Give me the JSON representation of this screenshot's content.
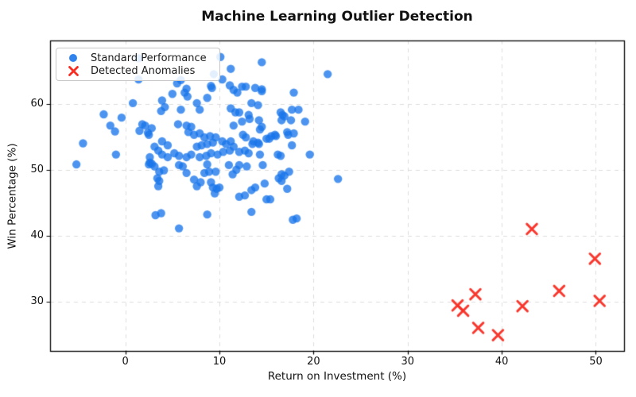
{
  "chart_data": {
    "type": "scatter",
    "title": "Machine Learning Outlier Detection",
    "xlabel": "Return on Investment (%)",
    "ylabel": "Win Percentage (%)",
    "xlim": [
      -8,
      53
    ],
    "ylim": [
      22.5,
      69.6
    ],
    "xticks": [
      0,
      10,
      20,
      30,
      40,
      50
    ],
    "yticks": [
      30,
      40,
      50,
      60
    ],
    "grid": true,
    "grid_color": "#dcdcdc",
    "spine_color": "#000000",
    "legend_position": "upper-left",
    "series": [
      {
        "name": "Standard Performance",
        "marker": "circle",
        "color": "#1976eb",
        "alpha": 0.78,
        "points": [
          [
            -5.2,
            50.8
          ],
          [
            -4.5,
            54
          ],
          [
            -2.3,
            58.4
          ],
          [
            -1.6,
            56.7
          ],
          [
            -1.1,
            55.8
          ],
          [
            -1,
            52.3
          ],
          [
            -0.4,
            57.9
          ],
          [
            0.8,
            60.1
          ],
          [
            1.4,
            66.9
          ],
          [
            1.4,
            63.7
          ],
          [
            5.9,
            63.6
          ],
          [
            9.4,
            64.5
          ],
          [
            6.5,
            62.3
          ],
          [
            10.1,
            67.1
          ],
          [
            11.2,
            65.3
          ],
          [
            14.5,
            66.3
          ],
          [
            21.5,
            64.5
          ],
          [
            5.5,
            63.1
          ],
          [
            9.1,
            62.7
          ],
          [
            11.1,
            62.8
          ],
          [
            12.4,
            62.6
          ],
          [
            12.8,
            62.6
          ],
          [
            13.8,
            62.4
          ],
          [
            14.5,
            62.2
          ],
          [
            9.2,
            62.4
          ],
          [
            10.3,
            63.7
          ],
          [
            14.5,
            61.9
          ],
          [
            5,
            61.5
          ],
          [
            6.3,
            61.7
          ],
          [
            6.6,
            61.1
          ],
          [
            8.7,
            60.9
          ],
          [
            11.5,
            62.1
          ],
          [
            11.9,
            61.7
          ],
          [
            17.9,
            61.7
          ],
          [
            3.9,
            60.5
          ],
          [
            7.6,
            60.1
          ],
          [
            13.4,
            60.1
          ],
          [
            14.1,
            59.8
          ],
          [
            4.2,
            59.5
          ],
          [
            3.8,
            58.9
          ],
          [
            5.9,
            59.1
          ],
          [
            7.9,
            59.1
          ],
          [
            11.2,
            59.3
          ],
          [
            11.7,
            58.7
          ],
          [
            12.1,
            58.7
          ],
          [
            16.5,
            58.7
          ],
          [
            16.7,
            58.3
          ],
          [
            17.7,
            59.1
          ],
          [
            18.4,
            59.1
          ],
          [
            13.1,
            58.3
          ],
          [
            13.2,
            57.7
          ],
          [
            12.4,
            57.3
          ],
          [
            11.5,
            56.7
          ],
          [
            14.2,
            57.5
          ],
          [
            14.5,
            56.5
          ],
          [
            16.9,
            58.1
          ],
          [
            16.6,
            57.5
          ],
          [
            17.6,
            57.5
          ],
          [
            19.1,
            57.3
          ],
          [
            1.8,
            56.9
          ],
          [
            2.1,
            56.7
          ],
          [
            2.8,
            56.3
          ],
          [
            1.5,
            55.9
          ],
          [
            2.4,
            55.6
          ],
          [
            2.5,
            55.3
          ],
          [
            5.6,
            56.9
          ],
          [
            6.5,
            56.7
          ],
          [
            7,
            56.5
          ],
          [
            6.7,
            55.7
          ],
          [
            7.3,
            55.3
          ],
          [
            7.9,
            55.5
          ],
          [
            8.4,
            54.9
          ],
          [
            9,
            55.1
          ],
          [
            9.6,
            54.9
          ],
          [
            12.5,
            55.3
          ],
          [
            12.8,
            54.9
          ],
          [
            14.3,
            56.1
          ],
          [
            15.5,
            55.1
          ],
          [
            15.9,
            55.3
          ],
          [
            17.3,
            55.3
          ],
          [
            17.2,
            55.7
          ],
          [
            17.9,
            55.5
          ],
          [
            16,
            55.1
          ],
          [
            3.9,
            54.3
          ],
          [
            4.5,
            53.7
          ],
          [
            9.3,
            54.1
          ],
          [
            8.7,
            53.9
          ],
          [
            8.1,
            53.7
          ],
          [
            7.6,
            53.5
          ],
          [
            10.3,
            54.3
          ],
          [
            10.7,
            53.9
          ],
          [
            11.2,
            54.3
          ],
          [
            11.5,
            53.5
          ],
          [
            13.6,
            54.3
          ],
          [
            14.1,
            54.1
          ],
          [
            14.2,
            53.9
          ],
          [
            13.5,
            53.9
          ],
          [
            15.3,
            54.7
          ],
          [
            15,
            54.7
          ],
          [
            17.7,
            53.7
          ],
          [
            11.1,
            52.9
          ],
          [
            10.4,
            52.7
          ],
          [
            9.8,
            52.3
          ],
          [
            9.1,
            52.5
          ],
          [
            8.6,
            52.1
          ],
          [
            7.9,
            51.9
          ],
          [
            7,
            52.3
          ],
          [
            6.5,
            51.9
          ],
          [
            5.7,
            52.1
          ],
          [
            5.2,
            52.5
          ],
          [
            4.5,
            51.9
          ],
          [
            3.9,
            52.3
          ],
          [
            3.5,
            52.9
          ],
          [
            3.1,
            53.5
          ],
          [
            2.6,
            51.9
          ],
          [
            2.6,
            51.1
          ],
          [
            12.7,
            52.9
          ],
          [
            13.1,
            52.5
          ],
          [
            14.3,
            52.3
          ],
          [
            16.2,
            52.3
          ],
          [
            16.5,
            52.1
          ],
          [
            19.6,
            52.3
          ],
          [
            12.1,
            52.7
          ],
          [
            2.5,
            50.8
          ],
          [
            3.1,
            50.5
          ],
          [
            2.8,
            50.9
          ],
          [
            3.6,
            49.7
          ],
          [
            4.1,
            49.9
          ],
          [
            3.4,
            48.7
          ],
          [
            3.6,
            48.3
          ],
          [
            3.5,
            47.5
          ],
          [
            5.7,
            50.7
          ],
          [
            6.1,
            50.5
          ],
          [
            6.5,
            49.5
          ],
          [
            7.3,
            48.5
          ],
          [
            7.6,
            47.5
          ],
          [
            8,
            48.1
          ],
          [
            8.4,
            49.5
          ],
          [
            8.7,
            50.8
          ],
          [
            8.9,
            49.7
          ],
          [
            9.1,
            48.1
          ],
          [
            9.3,
            47.3
          ],
          [
            9.6,
            49.7
          ],
          [
            9.7,
            47.1
          ],
          [
            10,
            47.3
          ],
          [
            9.5,
            46.4
          ],
          [
            11,
            50.7
          ],
          [
            11.4,
            49.3
          ],
          [
            11.8,
            50
          ],
          [
            12.9,
            50.5
          ],
          [
            14.6,
            50.7
          ],
          [
            12.1,
            50.7
          ],
          [
            16.6,
            49.3
          ],
          [
            16.3,
            48.7
          ],
          [
            16.6,
            48.3
          ],
          [
            16.9,
            49.1
          ],
          [
            17.4,
            49.7
          ],
          [
            14.8,
            47.9
          ],
          [
            13.8,
            47.3
          ],
          [
            13.4,
            46.9
          ],
          [
            12.7,
            46.1
          ],
          [
            12.1,
            45.9
          ],
          [
            15,
            45.5
          ],
          [
            15.4,
            45.5
          ],
          [
            17.2,
            47.1
          ],
          [
            22.6,
            48.6
          ],
          [
            3.2,
            43.1
          ],
          [
            3.8,
            43.4
          ],
          [
            5.7,
            41.1
          ],
          [
            8.7,
            43.2
          ],
          [
            13.4,
            43.6
          ],
          [
            17.8,
            42.4
          ],
          [
            18.2,
            42.6
          ]
        ]
      },
      {
        "name": "Detected Anomalies",
        "marker": "x",
        "color": "#f82d23",
        "alpha": 0.95,
        "points": [
          [
            43.2,
            41.0
          ],
          [
            49.9,
            36.5
          ],
          [
            46.1,
            31.6
          ],
          [
            37.2,
            31.1
          ],
          [
            35.3,
            29.4
          ],
          [
            35.9,
            28.6
          ],
          [
            42.2,
            29.3
          ],
          [
            50.4,
            30.1
          ],
          [
            37.5,
            26.0
          ],
          [
            39.6,
            24.9
          ]
        ]
      }
    ]
  }
}
